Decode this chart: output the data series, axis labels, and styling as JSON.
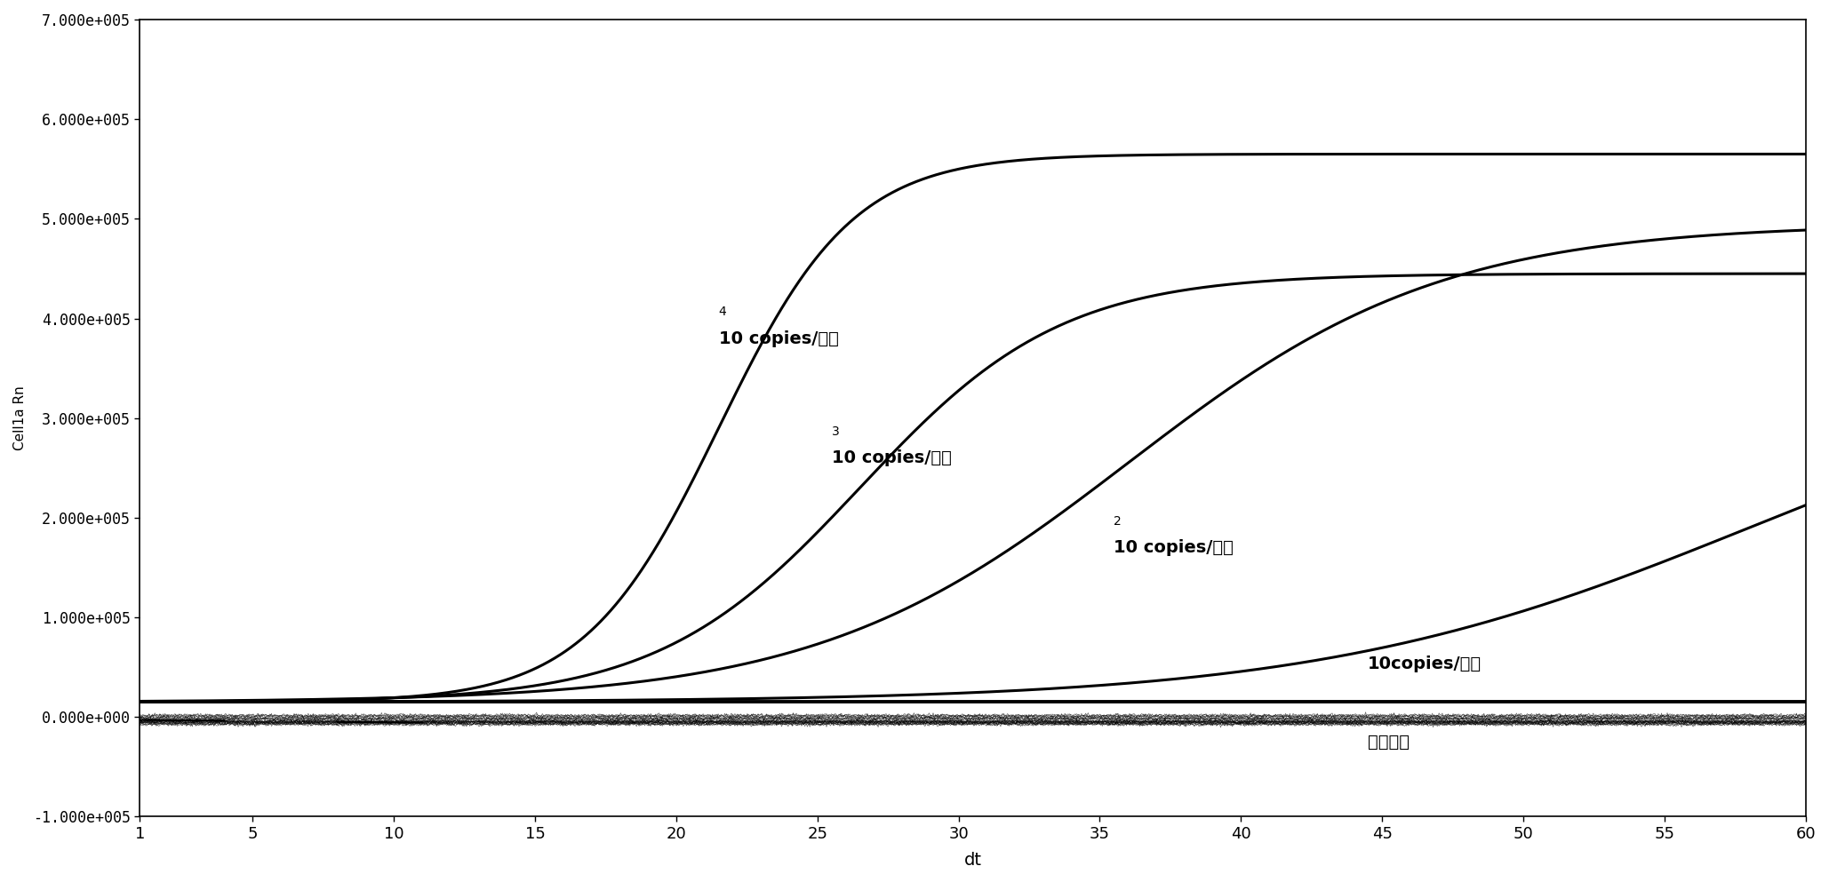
{
  "title": "",
  "xlabel": "dt",
  "ylabel": "Cell1a Rn",
  "xlim": [
    1,
    60
  ],
  "ylim": [
    -100000.0,
    700000.0
  ],
  "xticks": [
    1,
    5,
    10,
    15,
    20,
    25,
    30,
    35,
    40,
    45,
    50,
    55,
    60
  ],
  "yticks": [
    -100000.0,
    0.0,
    100000.0,
    200000.0,
    300000.0,
    400000.0,
    500000.0,
    600000.0,
    700000.0
  ],
  "background_color": "#ffffff",
  "line_color": "#000000",
  "curve4": {
    "t0": 21.5,
    "L": 550000.0,
    "k": 0.42,
    "baseline": 15000
  },
  "curve3": {
    "t0": 26.5,
    "L": 430000.0,
    "k": 0.28,
    "baseline": 15000
  },
  "curve2": {
    "t0": 36.0,
    "L": 480000.0,
    "k": 0.18,
    "baseline": 15000
  },
  "curve1": {
    "t0": 58.0,
    "L": 350000.0,
    "k": 0.13,
    "baseline": 15000
  },
  "baseline_y": 15000,
  "neg_y": -5000,
  "ann4_x": 21.5,
  "ann4_y": 375000,
  "ann3_x": 25.5,
  "ann3_y": 255000,
  "ann2_x": 35.5,
  "ann2_y": 165000,
  "ann1_x": 44.5,
  "ann1_y": 48000,
  "annneg_x": 44.5,
  "annneg_y": -30000
}
